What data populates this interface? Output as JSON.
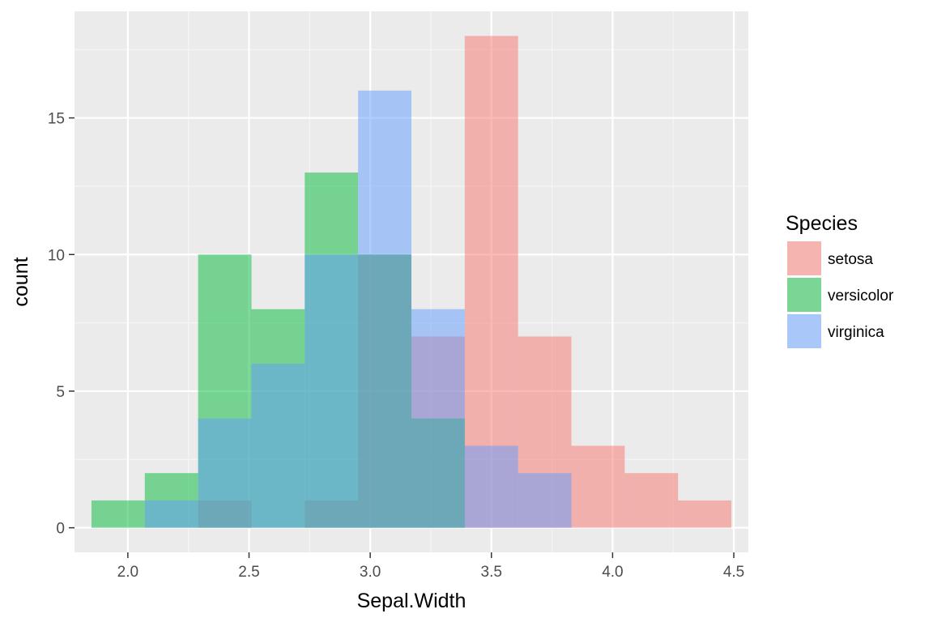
{
  "chart_data": {
    "type": "bar",
    "subtype": "overlapping-histogram",
    "xlabel": "Sepal.Width",
    "ylabel": "count",
    "xlim": [
      1.78,
      4.56
    ],
    "ylim": [
      -0.9,
      18.9
    ],
    "xticks": [
      2.0,
      2.5,
      3.0,
      3.5,
      4.0,
      4.5
    ],
    "xtick_labels": [
      "2.0",
      "2.5",
      "3.0",
      "3.5",
      "4.0",
      "4.5"
    ],
    "yticks": [
      0,
      5,
      10,
      15
    ],
    "ytick_labels": [
      "0",
      "5",
      "10",
      "15"
    ],
    "grid": true,
    "bar_opacity": 0.5,
    "bin_edges": [
      1.85,
      2.07,
      2.29,
      2.51,
      2.73,
      2.95,
      3.17,
      3.39,
      3.61,
      3.83,
      4.05,
      4.27,
      4.49
    ],
    "legend": {
      "title": "Species",
      "position": "right"
    },
    "series": [
      {
        "name": "setosa",
        "color": "#F8766D",
        "values": [
          0,
          0,
          1,
          0,
          1,
          10,
          7,
          18,
          7,
          3,
          2,
          1
        ]
      },
      {
        "name": "versicolor",
        "color": "#00BA38",
        "values": [
          1,
          2,
          10,
          8,
          13,
          10,
          4,
          0,
          0,
          0,
          0,
          0
        ]
      },
      {
        "name": "virginica",
        "color": "#619CFF",
        "values": [
          0,
          1,
          4,
          6,
          10,
          16,
          8,
          3,
          2,
          0,
          0,
          0
        ]
      }
    ]
  }
}
